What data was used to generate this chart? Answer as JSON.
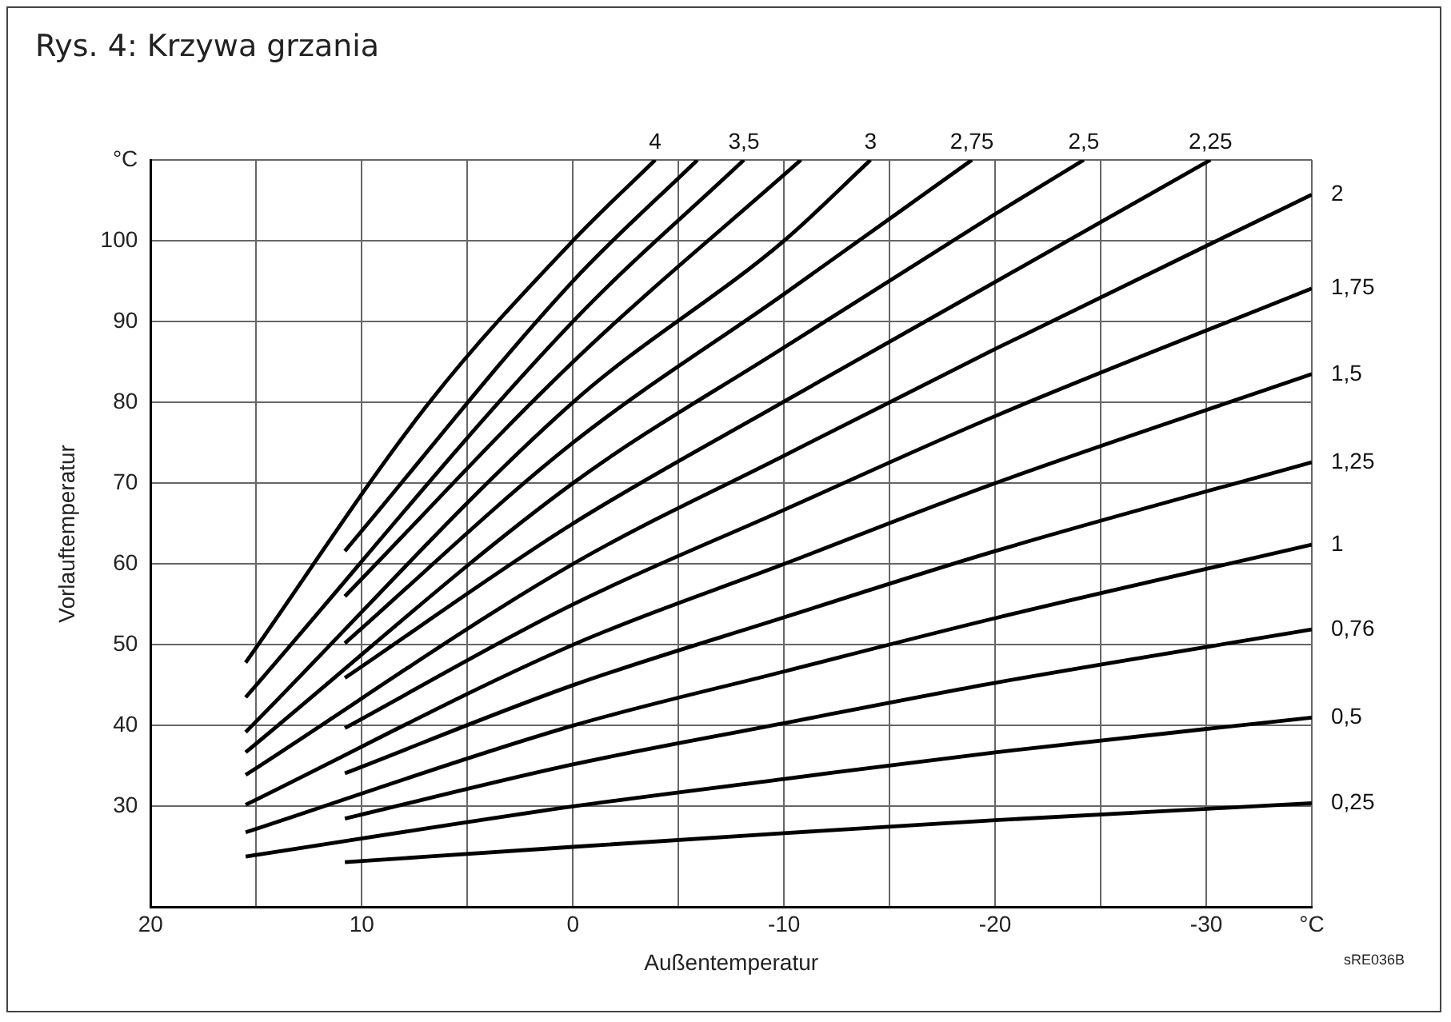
{
  "chart_data": {
    "type": "line",
    "title": "Rys. 4: Krzywa grzania",
    "xlabel": "Außentemperatur",
    "ylabel": "Vorlauftemperatur",
    "annotations": [
      "sRE036B"
    ],
    "xlim": [
      20,
      -35
    ],
    "xticks": [
      20,
      {
        "value": 15,
        "label": null
      },
      10,
      {
        "value": 5,
        "label": null
      },
      0,
      {
        "value": -5,
        "label": null
      },
      -10,
      {
        "value": -15,
        "label": null
      },
      -20,
      {
        "value": -25,
        "label": null
      },
      -30,
      {
        "value": -35,
        "label": "°C"
      }
    ],
    "ylim": [
      17.5,
      110
    ],
    "yticks": [
      30,
      40,
      50,
      60,
      70,
      80,
      90,
      100,
      {
        "value": 110,
        "label": "°C"
      }
    ],
    "grid": true,
    "legend": false,
    "series": [
      {
        "name": "4",
        "color": "#000000",
        "x": [
          15.5,
          6.8,
          0,
          -3.9
        ],
        "values": [
          47.8,
          80,
          100,
          110
        ]
      },
      {
        "color": "#000000",
        "x": [
          10.8,
          0,
          -5.9
        ],
        "values": [
          61.6,
          95,
          110
        ]
      },
      {
        "name": "3,5",
        "color": "#000000",
        "x": [
          15.5,
          0,
          -8.1
        ],
        "values": [
          43.5,
          90,
          110
        ]
      },
      {
        "color": "#000000",
        "x": [
          10.8,
          0,
          -10.8
        ],
        "values": [
          56,
          85,
          110
        ]
      },
      {
        "name": "3",
        "color": "#000000",
        "x": [
          15.5,
          0,
          -10,
          -14.1
        ],
        "values": [
          39.2,
          80,
          100,
          110
        ]
      },
      {
        "name": "2,75",
        "color": "#000000",
        "x": [
          10.8,
          0,
          -10,
          -18.9
        ],
        "values": [
          50.2,
          75,
          93.4,
          110
        ]
      },
      {
        "name": "2,5",
        "color": "#000000",
        "x": [
          15.5,
          0,
          -10,
          -20,
          -24.2
        ],
        "values": [
          36.7,
          70,
          86.8,
          103.3,
          110
        ]
      },
      {
        "name": "2,25",
        "color": "#000000",
        "x": [
          10.8,
          0,
          -10,
          -20,
          -30.2
        ],
        "values": [
          45.9,
          65,
          80.1,
          94.9,
          110
        ]
      },
      {
        "name": "2",
        "color": "#000000",
        "x": [
          15.5,
          0,
          -10,
          -20,
          -35
        ],
        "values": [
          33.9,
          60,
          73.4,
          86.6,
          105.7
        ]
      },
      {
        "name": "1,75",
        "color": "#000000",
        "x": [
          10.8,
          0,
          -10,
          -20,
          -35
        ],
        "values": [
          39.7,
          55,
          66.7,
          78.3,
          94.1
        ]
      },
      {
        "name": "1,5",
        "color": "#000000",
        "x": [
          15.5,
          0,
          -10,
          -20,
          -35
        ],
        "values": [
          30.2,
          50,
          60,
          70,
          83.5
        ]
      },
      {
        "name": "1,25",
        "color": "#000000",
        "x": [
          10.8,
          0,
          -10,
          -20,
          -35
        ],
        "values": [
          34.1,
          45,
          53.4,
          61.6,
          72.6
        ]
      },
      {
        "name": "1",
        "color": "#000000",
        "x": [
          15.5,
          0,
          -10,
          -20,
          -35
        ],
        "values": [
          26.8,
          40,
          46.7,
          53.3,
          62.4
        ]
      },
      {
        "name": "0,76",
        "color": "#000000",
        "x": [
          10.8,
          0,
          -10,
          -20,
          -35
        ],
        "values": [
          28.5,
          35.2,
          40.3,
          45.3,
          51.9
        ]
      },
      {
        "name": "0,5",
        "color": "#000000",
        "x": [
          15.5,
          0,
          -10,
          -20,
          -35
        ],
        "values": [
          23.8,
          30,
          33.4,
          36.7,
          41
        ]
      },
      {
        "name": "0,25",
        "color": "#000000",
        "x": [
          10.8,
          0,
          -10,
          -20,
          -35
        ],
        "values": [
          23.1,
          25,
          26.7,
          28.3,
          30.4
        ]
      }
    ]
  }
}
